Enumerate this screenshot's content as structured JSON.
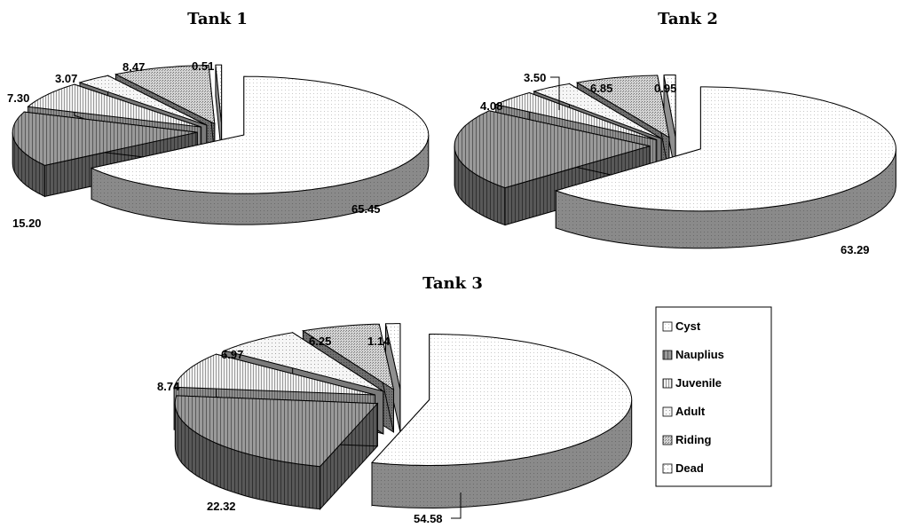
{
  "chart_data": [
    {
      "type": "pie",
      "title": "Tank 1",
      "categories": [
        "Cyst",
        "Nauplius",
        "Juvenile",
        "Adult",
        "Riding",
        "Dead"
      ],
      "values": [
        65.45,
        15.2,
        7.3,
        3.07,
        8.47,
        0.51
      ],
      "labels": [
        "65.45",
        "15.20",
        "7.30",
        "3.07",
        "8.47",
        "0.51"
      ]
    },
    {
      "type": "pie",
      "title": "Tank 2",
      "categories": [
        "Cyst",
        "Nauplius",
        "Juvenile",
        "Adult",
        "Riding",
        "Dead"
      ],
      "values": [
        63.29,
        21.33,
        4.08,
        3.5,
        6.85,
        0.95
      ],
      "labels": [
        "63.29",
        "",
        "4.08",
        "3.50",
        "6.85",
        "0.95"
      ]
    },
    {
      "type": "pie",
      "title": "Tank 3",
      "categories": [
        "Cyst",
        "Nauplius",
        "Juvenile",
        "Adult",
        "Riding",
        "Dead"
      ],
      "values": [
        54.58,
        22.32,
        8.74,
        6.97,
        6.25,
        1.14
      ],
      "labels": [
        "54.58",
        "22.32",
        "8.74",
        "6.97",
        "6.25",
        "1.14"
      ]
    }
  ],
  "legend": {
    "items": [
      {
        "label": "Cyst"
      },
      {
        "label": "Nauplius"
      },
      {
        "label": "Juvenile"
      },
      {
        "label": "Adult"
      },
      {
        "label": "Riding"
      },
      {
        "label": "Dead"
      }
    ]
  }
}
